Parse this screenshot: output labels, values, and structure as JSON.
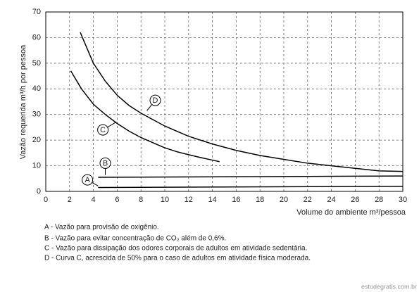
{
  "chart_data": {
    "type": "line",
    "x_label": "Volume do ambiente m³/pessoa",
    "y_label": "Vazão requerida m³/h por pessoa",
    "xlim": [
      0,
      30
    ],
    "xticks": [
      0,
      2,
      4,
      6,
      8,
      10,
      12,
      14,
      16,
      18,
      20,
      22,
      24,
      26,
      28,
      30
    ],
    "ylim": [
      0,
      70
    ],
    "yticks": [
      0,
      10,
      20,
      30,
      40,
      50,
      60,
      70
    ],
    "grid": true,
    "series": [
      {
        "name": "A",
        "color": "#000000",
        "x": [
          4.4,
          30
        ],
        "values": [
          1.5,
          2
        ]
      },
      {
        "name": "B",
        "color": "#000000",
        "x": [
          4.4,
          30
        ],
        "values": [
          5.5,
          6
        ]
      },
      {
        "name": "C",
        "color": "#000000",
        "x": [
          2.1,
          3,
          4,
          5,
          6,
          7,
          8,
          9,
          10,
          11,
          12,
          13,
          14,
          14.6
        ],
        "values": [
          47,
          40,
          34,
          30,
          26.5,
          23.5,
          21,
          19,
          17,
          15.5,
          14.3,
          13.2,
          12.2,
          11.6
        ]
      },
      {
        "name": "D",
        "color": "#000000",
        "x": [
          2.9,
          4,
          5,
          6,
          7,
          8,
          9,
          10,
          12,
          14,
          16,
          18,
          20,
          22,
          24,
          26,
          28,
          30
        ],
        "values": [
          62,
          50,
          43,
          37.5,
          33.5,
          30.5,
          28,
          25.5,
          21.5,
          18.5,
          16,
          14,
          12.5,
          11,
          10,
          9,
          8,
          7.8
        ]
      }
    ],
    "notes": [
      "A - Vazão para provisão de oxigênio.",
      "B - Vazão para evitar concentração de CO₂ além de 0,6%.",
      "C - Vazão para dissipação dos odores corporais de adultos em atividade sedentária.",
      "D - Curva C, acrescida de 50% para o caso de adultos em atividade física moderada."
    ],
    "source": "estudegratis.com.br"
  }
}
